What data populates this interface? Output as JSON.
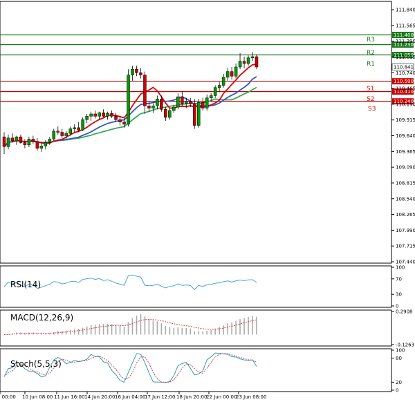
{
  "chart_data": {
    "type": "candlestick",
    "main": {
      "y_ticks": [
        "111.840",
        "111.565",
        "111.290",
        "111.015",
        "110.740",
        "110.465",
        "110.190",
        "109.915",
        "109.640",
        "109.365",
        "109.090",
        "108.815",
        "108.540",
        "108.265",
        "107.990",
        "107.715",
        "107.440"
      ],
      "ylim": [
        107.44,
        111.84
      ],
      "current_price": "110.841",
      "levels": [
        {
          "name": "R3",
          "value": 111.4,
          "tag": "111.400",
          "kind": "resistance"
        },
        {
          "name": "R2",
          "value": 111.23,
          "tag": "111.230",
          "kind": "resistance"
        },
        {
          "name": "R1",
          "value": 111.05,
          "tag": "111.050",
          "kind": "resistance"
        },
        {
          "name": "S1",
          "value": 110.59,
          "tag": "110.590",
          "kind": "support"
        },
        {
          "name": "S2",
          "value": 110.41,
          "tag": "110.410",
          "kind": "support"
        },
        {
          "name": "S3",
          "value": 110.24,
          "tag": "110.240",
          "kind": "support"
        }
      ],
      "candles": [
        [
          109.62,
          109.7,
          109.32,
          109.45
        ],
        [
          109.45,
          109.66,
          109.4,
          109.6
        ],
        [
          109.6,
          109.68,
          109.52,
          109.55
        ],
        [
          109.55,
          109.64,
          109.48,
          109.62
        ],
        [
          109.62,
          109.66,
          109.5,
          109.52
        ],
        [
          109.52,
          109.58,
          109.42,
          109.48
        ],
        [
          109.48,
          109.62,
          109.44,
          109.58
        ],
        [
          109.58,
          109.64,
          109.5,
          109.54
        ],
        [
          109.54,
          109.6,
          109.38,
          109.42
        ],
        [
          109.42,
          109.52,
          109.36,
          109.46
        ],
        [
          109.46,
          109.56,
          109.4,
          109.52
        ],
        [
          109.52,
          109.62,
          109.48,
          109.58
        ],
        [
          109.58,
          109.76,
          109.55,
          109.72
        ],
        [
          109.72,
          109.8,
          109.66,
          109.7
        ],
        [
          109.7,
          109.76,
          109.6,
          109.64
        ],
        [
          109.64,
          109.72,
          109.58,
          109.68
        ],
        [
          109.68,
          109.8,
          109.64,
          109.76
        ],
        [
          109.76,
          109.84,
          109.7,
          109.78
        ],
        [
          109.78,
          109.88,
          109.7,
          109.74
        ],
        [
          109.74,
          109.96,
          109.72,
          109.92
        ],
        [
          109.92,
          110.02,
          109.86,
          109.98
        ],
        [
          109.98,
          110.06,
          109.9,
          110.02
        ],
        [
          110.02,
          110.08,
          109.94,
          109.98
        ],
        [
          109.98,
          110.06,
          109.92,
          110.04
        ],
        [
          110.04,
          110.1,
          109.96,
          109.98
        ],
        [
          109.98,
          110.06,
          109.92,
          110.03
        ],
        [
          110.03,
          110.08,
          109.95,
          109.98
        ],
        [
          109.98,
          110.04,
          109.88,
          109.92
        ],
        [
          109.92,
          109.98,
          109.82,
          109.88
        ],
        [
          109.88,
          109.94,
          109.78,
          109.84
        ],
        [
          109.84,
          110.8,
          109.8,
          110.7
        ],
        [
          110.7,
          110.86,
          110.6,
          110.8
        ],
        [
          110.8,
          110.86,
          110.68,
          110.74
        ],
        [
          110.74,
          110.82,
          110.64,
          110.7
        ],
        [
          110.7,
          110.76,
          110.02,
          110.16
        ],
        [
          110.16,
          110.24,
          110.06,
          110.12
        ],
        [
          110.12,
          110.2,
          110.04,
          110.16
        ],
        [
          110.16,
          110.34,
          110.1,
          110.28
        ],
        [
          110.28,
          110.34,
          110.06,
          110.1
        ],
        [
          110.1,
          110.14,
          109.9,
          109.96
        ],
        [
          109.96,
          110.12,
          109.92,
          110.08
        ],
        [
          110.08,
          110.18,
          110.04,
          110.14
        ],
        [
          110.14,
          110.38,
          110.1,
          110.32
        ],
        [
          110.32,
          110.42,
          110.16,
          110.2
        ],
        [
          110.2,
          110.3,
          110.12,
          110.24
        ],
        [
          110.24,
          110.3,
          110.14,
          110.2
        ],
        [
          110.2,
          110.28,
          109.76,
          109.82
        ],
        [
          109.82,
          110.28,
          109.78,
          110.22
        ],
        [
          110.22,
          110.3,
          110.08,
          110.12
        ],
        [
          110.12,
          110.36,
          110.08,
          110.3
        ],
        [
          110.3,
          110.38,
          110.24,
          110.34
        ],
        [
          110.34,
          110.52,
          110.3,
          110.48
        ],
        [
          110.48,
          110.58,
          110.4,
          110.52
        ],
        [
          110.52,
          110.72,
          110.48,
          110.66
        ],
        [
          110.66,
          110.82,
          110.6,
          110.76
        ],
        [
          110.76,
          110.84,
          110.62,
          110.68
        ],
        [
          110.68,
          110.9,
          110.64,
          110.84
        ],
        [
          110.84,
          111.08,
          110.8,
          110.94
        ],
        [
          110.94,
          111.02,
          110.82,
          110.9
        ],
        [
          110.9,
          111.04,
          110.86,
          111.0
        ],
        [
          111.0,
          111.1,
          110.94,
          111.02
        ],
        [
          111.02,
          111.06,
          110.8,
          110.84
        ]
      ]
    },
    "rsi": {
      "label": "RSI(14)",
      "ticks": [
        "100",
        "70",
        "30",
        "0"
      ],
      "ylim": [
        0,
        100
      ]
    },
    "macd": {
      "label": "MACD(12,26,9)",
      "ticks": [
        "0.2908",
        "-0.1263"
      ],
      "ylim": [
        -0.1263,
        0.2908
      ]
    },
    "stoch": {
      "label": "Stoch(5,5,3)",
      "ticks": [
        "100",
        "80",
        "20",
        "0"
      ],
      "ylim": [
        0,
        100
      ]
    },
    "x_ticks": [
      "n 00:00",
      "10 Jun 08:00",
      "11 Jun 16:00",
      "14 Jun 20:00",
      "16 Jun 04:00",
      "17 Jun 12:00",
      "18 Jun 20:00",
      "22 Jun 00:00",
      "23 Jun 08:00"
    ]
  },
  "colors": {
    "bull": "#009900",
    "bear": "#cc0000",
    "resistance": "#1a7a1a",
    "support": "#cc0000",
    "ma_fast": "#e00000",
    "ma_mid": "#3355cc",
    "ma_slow": "#33aa55",
    "rsi": "#4aa3df",
    "macd_signal": "#d04040",
    "stoch_k": "#2aa0b8",
    "stoch_d": "#d04040"
  }
}
